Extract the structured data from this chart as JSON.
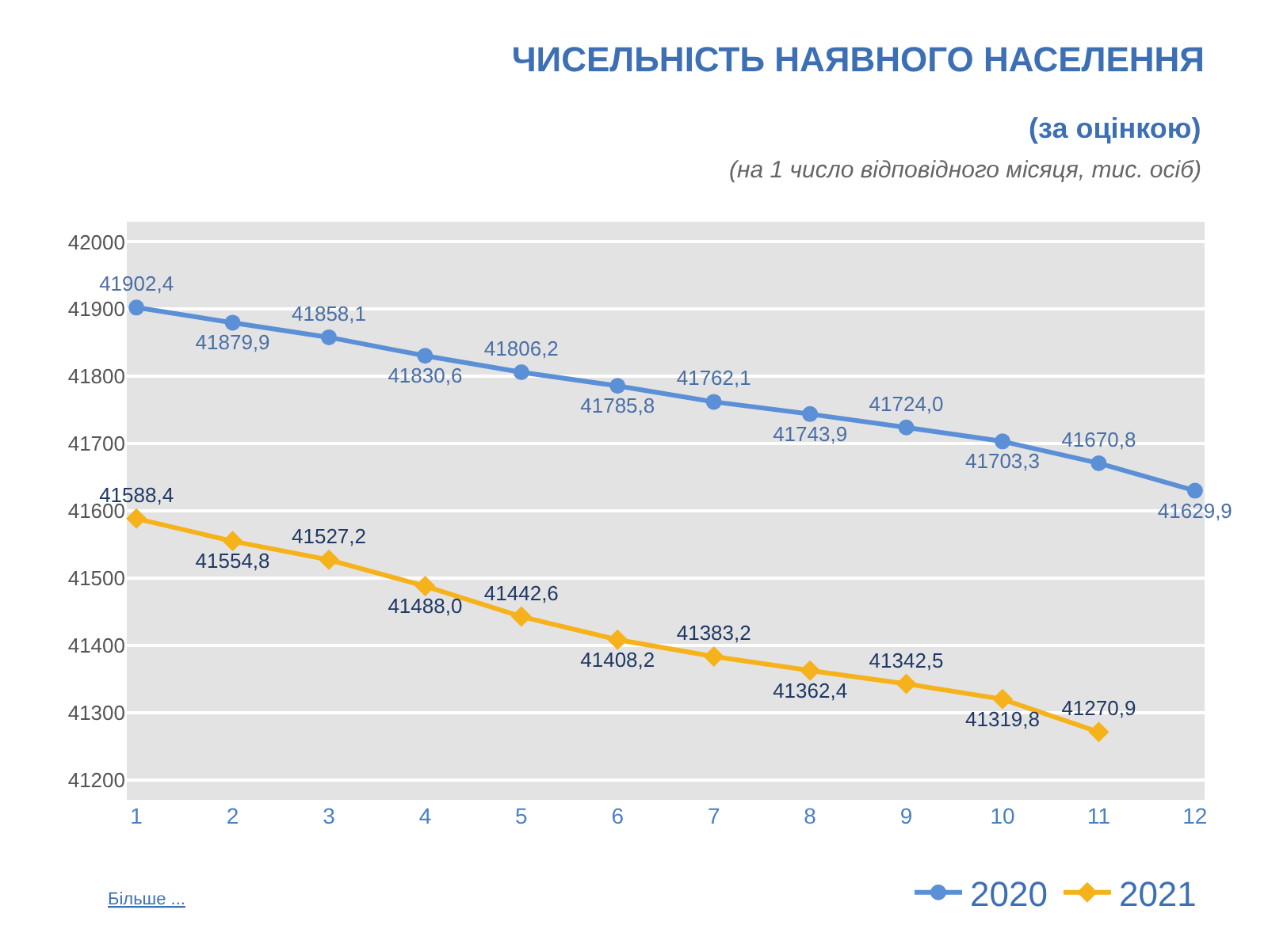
{
  "chart_data": {
    "type": "line",
    "title": "ЧИСЕЛЬНІСТЬ НАЯВНОГО НАСЕЛЕННЯ",
    "subtitle": "(за оцінкою)",
    "annotations": [
      "(на 1 число відповідного місяця, тис. осіб)",
      "Більше ..."
    ],
    "x": [
      1,
      2,
      3,
      4,
      5,
      6,
      7,
      8,
      9,
      10,
      11,
      12
    ],
    "series": [
      {
        "name": "2020",
        "color": "#5b8fd6",
        "marker": "circle",
        "values": [
          41902.4,
          41879.9,
          41858.1,
          41830.6,
          41806.2,
          41785.8,
          41762.1,
          41743.9,
          41724.0,
          41703.3,
          41670.8,
          41629.9
        ],
        "value_labels": [
          "41902,4",
          "41879,9",
          "41858,1",
          "41830,6",
          "41806,2",
          "41785,8",
          "41762,1",
          "41743,9",
          "41724,0",
          "41703,3",
          "41670,8",
          "41629,9"
        ]
      },
      {
        "name": "2021",
        "color": "#f6b21a",
        "marker": "diamond",
        "values": [
          41588.4,
          41554.8,
          41527.2,
          41488.0,
          41442.6,
          41408.2,
          41383.2,
          41362.4,
          41342.5,
          41319.8,
          41270.9,
          null
        ],
        "value_labels": [
          "41588,4",
          "41554,8",
          "41527,2",
          "41488,0",
          "41442,6",
          "41408,2",
          "41383,2",
          "41362,4",
          "41342,5",
          "41319,8",
          "41270,9",
          null
        ]
      }
    ],
    "xlim": [
      0.9,
      12.1
    ],
    "xticks": [
      1,
      2,
      3,
      4,
      5,
      6,
      7,
      8,
      9,
      10,
      11,
      12
    ],
    "ylim": [
      41170,
      42030
    ],
    "yticks": [
      41200,
      41300,
      41400,
      41500,
      41600,
      41700,
      41800,
      41900,
      42000
    ],
    "grid": "y",
    "legend": "bottom right",
    "line_style": "solid"
  }
}
